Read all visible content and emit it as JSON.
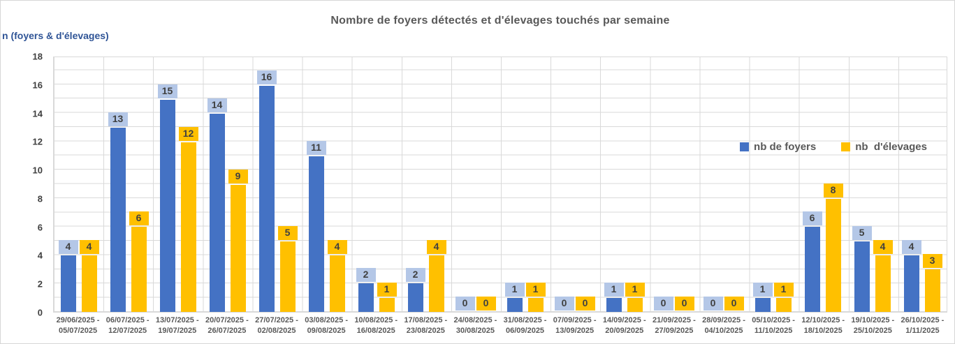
{
  "title": "Nombre de foyers détectés et d'élevages touchés par semaine",
  "y_axis_title": "n (foyers & d'élevages)",
  "colors": {
    "foyers_bar": "#4472C4",
    "elevages_bar": "#FFC000",
    "foyers_label_bg": "#B4C7E7",
    "elevages_label_bg": "#FFC000",
    "label_text": "#404040",
    "gridline": "#D9D9D9",
    "title_text": "#595959",
    "y_axis_title_text": "#2F5496"
  },
  "chart_data": {
    "type": "bar",
    "title": "Nombre de foyers détectés et d'élevages touchés par semaine",
    "ylabel": "n (foyers & d'élevages)",
    "xlabel": "",
    "ylim": [
      0,
      18
    ],
    "y_ticks": [
      0,
      2,
      4,
      6,
      8,
      10,
      12,
      14,
      16,
      18
    ],
    "grid": "both",
    "legend_position": "inside-right",
    "categories": [
      "29/06/2025 - 05/07/2025",
      "06/07/2025 - 12/07/2025",
      "13/07/2025 - 19/07/2025",
      "20/07/2025 - 26/07/2025",
      "27/07/2025 - 02/08/2025",
      "03/08/2025 - 09/08/2025",
      "10/08/2025 - 16/08/2025",
      "17/08/2025 - 23/08/2025",
      "24/08/2025 - 30/08/2025",
      "31/08/2025 - 06/09/2025",
      "07/09/2025 - 13/09/2025",
      "14/09/2025 - 20/09/2025",
      "21/09/2025 - 27/09/2025",
      "28/09/2025 - 04/10/2025",
      "05/10/2025 - 11/10/2025",
      "12/10/2025 - 18/10/2025",
      "19/10/2025 - 25/10/2025",
      "26/10/2025 - 1/11/2025"
    ],
    "series": [
      {
        "name": "nb de foyers",
        "color": "#4472C4",
        "label_bg": "#B4C7E7",
        "values": [
          4,
          13,
          15,
          14,
          16,
          11,
          2,
          2,
          0,
          1,
          0,
          1,
          0,
          0,
          1,
          6,
          5,
          4
        ]
      },
      {
        "name": "nb  d'élevages",
        "color": "#FFC000",
        "label_bg": "#FFC000",
        "values": [
          4,
          6,
          12,
          9,
          5,
          4,
          1,
          4,
          0,
          1,
          0,
          1,
          0,
          0,
          1,
          8,
          4,
          3
        ]
      }
    ]
  }
}
